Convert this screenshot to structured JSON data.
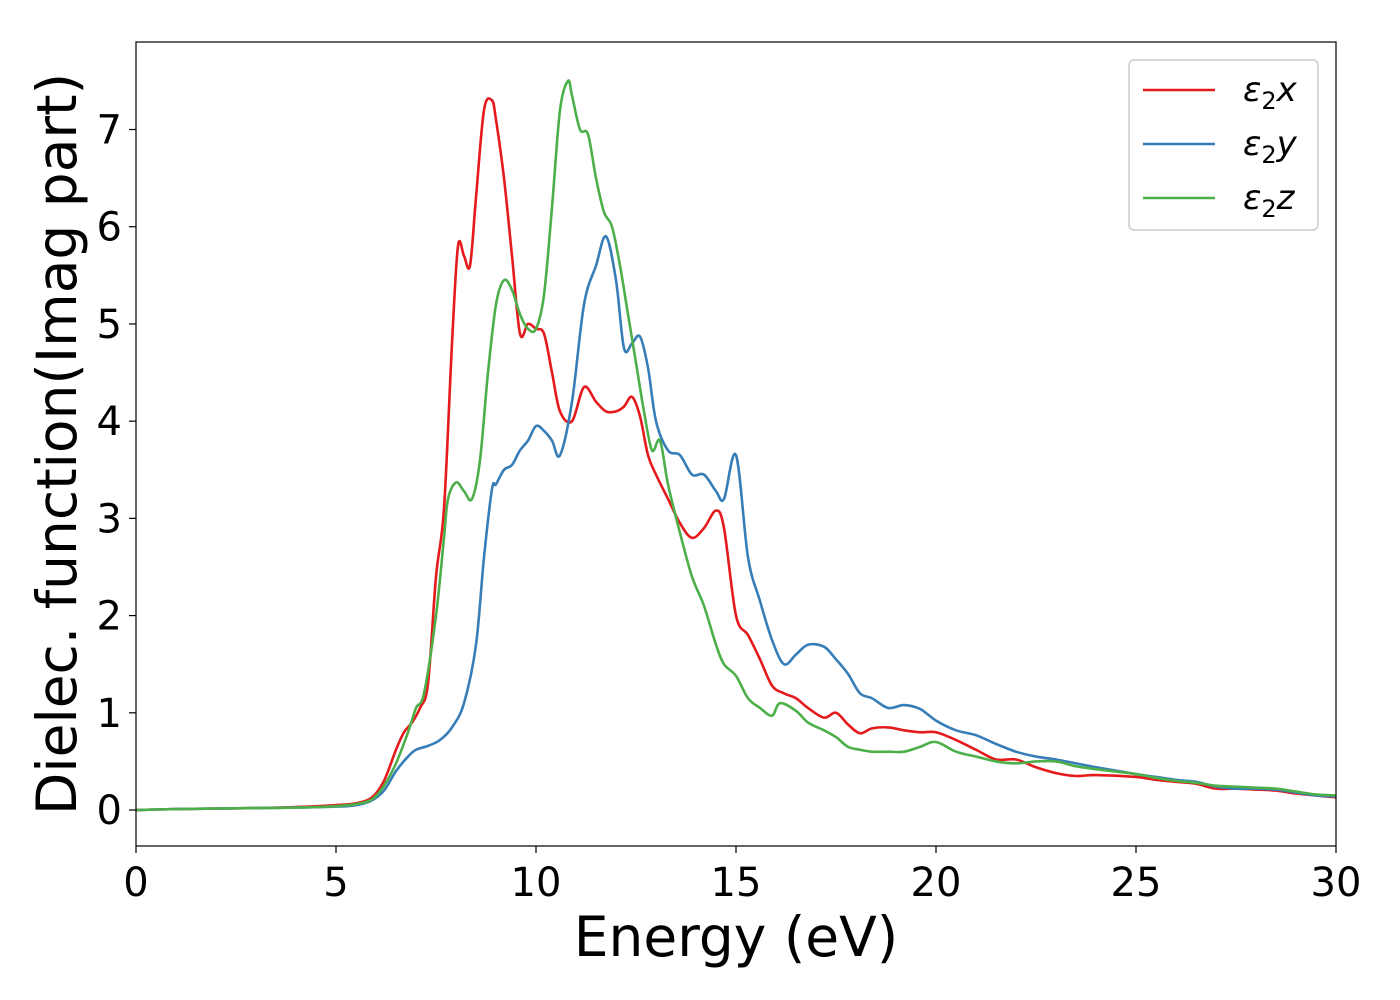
{
  "chart_data": {
    "type": "line",
    "xlabel": "Energy (eV)",
    "ylabel": "Dielec. function(Imag part)",
    "xlim": [
      0,
      30
    ],
    "ylim": [
      -0.37,
      7.9
    ],
    "xticks": [
      0,
      5,
      10,
      15,
      20,
      25,
      30
    ],
    "yticks": [
      0,
      1,
      2,
      3,
      4,
      5,
      6,
      7
    ],
    "grid": false,
    "legend_position": "top-right",
    "series": [
      {
        "name": "ε₂x",
        "legend": {
          "base": "ε",
          "sub": "2",
          "tail": "x"
        },
        "color": "#e41a1c",
        "x": [
          0,
          1,
          2,
          3,
          4,
          5,
          5.5,
          5.9,
          6.2,
          6.5,
          6.7,
          6.9,
          7.1,
          7.3,
          7.5,
          7.7,
          7.9,
          8.05,
          8.2,
          8.35,
          8.5,
          8.7,
          8.9,
          9.0,
          9.2,
          9.4,
          9.6,
          9.8,
          10.0,
          10.2,
          10.4,
          10.6,
          10.9,
          11.2,
          11.5,
          11.75,
          12.0,
          12.2,
          12.4,
          12.6,
          12.8,
          13.0,
          13.3,
          13.6,
          13.9,
          14.2,
          14.5,
          14.7,
          15.0,
          15.3,
          15.6,
          15.9,
          16.2,
          16.5,
          16.8,
          17.2,
          17.5,
          17.8,
          18.1,
          18.4,
          18.8,
          19.2,
          19.6,
          20.0,
          20.5,
          21.0,
          21.5,
          22.0,
          22.5,
          23.0,
          23.5,
          24.0,
          25.0,
          25.5,
          26.0,
          26.5,
          27.0,
          27.5,
          28.0,
          28.5,
          29.0,
          29.5,
          30.0
        ],
        "y": [
          0,
          0.01,
          0.015,
          0.02,
          0.03,
          0.05,
          0.07,
          0.13,
          0.3,
          0.62,
          0.8,
          0.9,
          1.05,
          1.3,
          2.4,
          3.1,
          4.8,
          5.8,
          5.7,
          5.6,
          6.3,
          7.2,
          7.3,
          7.1,
          6.5,
          5.7,
          4.9,
          5.0,
          4.95,
          4.9,
          4.5,
          4.1,
          4.0,
          4.35,
          4.2,
          4.1,
          4.1,
          4.15,
          4.25,
          4.05,
          3.65,
          3.45,
          3.2,
          2.95,
          2.8,
          2.9,
          3.08,
          2.9,
          2.0,
          1.8,
          1.55,
          1.28,
          1.2,
          1.15,
          1.05,
          0.95,
          1.0,
          0.88,
          0.79,
          0.84,
          0.85,
          0.82,
          0.8,
          0.8,
          0.72,
          0.62,
          0.52,
          0.52,
          0.44,
          0.38,
          0.35,
          0.36,
          0.34,
          0.31,
          0.29,
          0.27,
          0.22,
          0.22,
          0.21,
          0.2,
          0.17,
          0.15,
          0.13
        ]
      },
      {
        "name": "ε₂y",
        "legend": {
          "base": "ε",
          "sub": "2",
          "tail": "y"
        },
        "color": "#377eb8",
        "x": [
          0,
          1,
          2,
          3,
          4,
          5,
          5.5,
          5.9,
          6.2,
          6.5,
          6.8,
          7.0,
          7.3,
          7.6,
          7.9,
          8.2,
          8.5,
          8.7,
          8.9,
          9.0,
          9.2,
          9.4,
          9.6,
          9.8,
          10.0,
          10.2,
          10.4,
          10.6,
          10.9,
          11.2,
          11.5,
          11.75,
          12.0,
          12.2,
          12.4,
          12.6,
          12.8,
          13.0,
          13.3,
          13.6,
          13.9,
          14.2,
          14.5,
          14.7,
          15.0,
          15.3,
          15.6,
          15.9,
          16.2,
          16.5,
          16.8,
          17.2,
          17.5,
          17.8,
          18.1,
          18.4,
          18.8,
          19.2,
          19.6,
          20.0,
          20.5,
          21.0,
          21.5,
          22.0,
          22.5,
          23.0,
          23.5,
          24.0,
          25.0,
          25.5,
          26.0,
          26.5,
          27.0,
          27.5,
          28.0,
          28.5,
          29.0,
          29.5,
          30.0
        ],
        "y": [
          0,
          0.01,
          0.015,
          0.02,
          0.025,
          0.035,
          0.05,
          0.1,
          0.2,
          0.4,
          0.55,
          0.62,
          0.66,
          0.72,
          0.85,
          1.1,
          1.7,
          2.6,
          3.3,
          3.35,
          3.5,
          3.55,
          3.7,
          3.8,
          3.95,
          3.9,
          3.8,
          3.65,
          4.2,
          5.2,
          5.6,
          5.9,
          5.45,
          4.75,
          4.8,
          4.87,
          4.55,
          4.0,
          3.7,
          3.65,
          3.45,
          3.45,
          3.28,
          3.2,
          3.65,
          2.6,
          2.15,
          1.75,
          1.5,
          1.6,
          1.7,
          1.68,
          1.55,
          1.4,
          1.2,
          1.15,
          1.05,
          1.08,
          1.04,
          0.92,
          0.82,
          0.77,
          0.68,
          0.6,
          0.55,
          0.52,
          0.48,
          0.44,
          0.37,
          0.34,
          0.31,
          0.29,
          0.24,
          0.22,
          0.22,
          0.21,
          0.18,
          0.15,
          0.14
        ]
      },
      {
        "name": "ε₂z",
        "legend": {
          "base": "ε",
          "sub": "2",
          "tail": "z"
        },
        "color": "#4daf4a",
        "x": [
          0,
          1,
          2,
          3,
          4,
          5,
          5.5,
          5.9,
          6.2,
          6.5,
          6.8,
          7.0,
          7.2,
          7.5,
          7.7,
          7.8,
          8.0,
          8.2,
          8.4,
          8.6,
          8.8,
          9.0,
          9.2,
          9.4,
          9.6,
          9.8,
          10.0,
          10.2,
          10.4,
          10.6,
          10.8,
          10.9,
          11.1,
          11.3,
          11.5,
          11.7,
          11.9,
          12.1,
          12.3,
          12.5,
          12.7,
          12.9,
          13.1,
          13.3,
          13.6,
          13.9,
          14.2,
          14.5,
          14.7,
          15.0,
          15.3,
          15.6,
          15.9,
          16.1,
          16.5,
          16.8,
          17.2,
          17.5,
          17.8,
          18.1,
          18.4,
          18.8,
          19.2,
          19.6,
          20.0,
          20.5,
          21.0,
          21.5,
          22.0,
          22.5,
          23.0,
          23.5,
          24.0,
          25.0,
          25.5,
          26.0,
          26.5,
          27.0,
          27.5,
          28.0,
          28.5,
          29.0,
          29.5,
          30.0
        ],
        "y": [
          0,
          0.01,
          0.015,
          0.02,
          0.025,
          0.04,
          0.06,
          0.11,
          0.25,
          0.48,
          0.8,
          1.05,
          1.2,
          2.0,
          2.8,
          3.2,
          3.37,
          3.28,
          3.2,
          3.6,
          4.5,
          5.2,
          5.45,
          5.35,
          5.1,
          4.95,
          4.95,
          5.3,
          6.2,
          7.2,
          7.5,
          7.35,
          7.0,
          6.95,
          6.5,
          6.15,
          6.0,
          5.6,
          5.1,
          4.6,
          4.1,
          3.7,
          3.8,
          3.35,
          2.85,
          2.4,
          2.1,
          1.7,
          1.5,
          1.38,
          1.15,
          1.05,
          0.97,
          1.1,
          1.02,
          0.9,
          0.82,
          0.75,
          0.65,
          0.62,
          0.6,
          0.6,
          0.6,
          0.65,
          0.7,
          0.6,
          0.55,
          0.5,
          0.48,
          0.5,
          0.5,
          0.45,
          0.42,
          0.37,
          0.33,
          0.3,
          0.28,
          0.25,
          0.24,
          0.23,
          0.22,
          0.19,
          0.16,
          0.15
        ]
      }
    ]
  }
}
